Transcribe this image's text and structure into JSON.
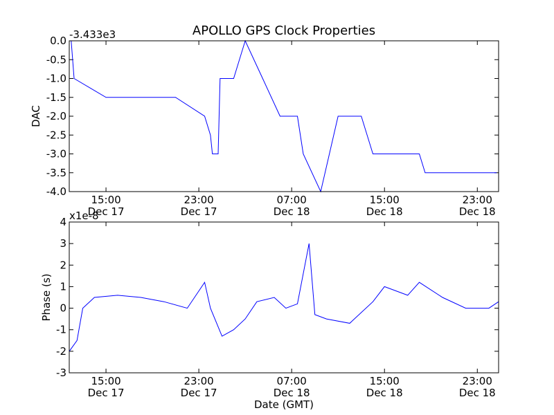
{
  "title": "APOLLO GPS Clock Properties",
  "line_color": "#0000ff",
  "chart_data": [
    {
      "type": "line",
      "offset_label": "-3.433e3",
      "ylabel": "DAC",
      "xlabel": "",
      "ylim": [
        -4.0,
        0.0
      ],
      "yticks": [
        {
          "value": 0.0,
          "label": "0.0"
        },
        {
          "value": -0.5,
          "label": "-0.5"
        },
        {
          "value": -1.0,
          "label": "-1.0"
        },
        {
          "value": -1.5,
          "label": "-1.5"
        },
        {
          "value": -2.0,
          "label": "-2.0"
        },
        {
          "value": -2.5,
          "label": "-2.5"
        },
        {
          "value": -3.0,
          "label": "-3.0"
        },
        {
          "value": -3.5,
          "label": "-3.5"
        },
        {
          "value": -4.0,
          "label": "-4.0"
        }
      ],
      "xlim": [
        "Dec 17 11:50",
        "Dec 19 00:50"
      ],
      "xticks": [
        {
          "time": "Dec 17 15:00",
          "hour": "15:00",
          "day": "Dec 17"
        },
        {
          "time": "Dec 17 23:00",
          "hour": "23:00",
          "day": "Dec 17"
        },
        {
          "time": "Dec 18 07:00",
          "hour": "07:00",
          "day": "Dec 18"
        },
        {
          "time": "Dec 18 15:00",
          "hour": "15:00",
          "day": "Dec 18"
        },
        {
          "time": "Dec 18 23:00",
          "hour": "23:00",
          "day": "Dec 18"
        }
      ],
      "series": [
        {
          "x": [
            "Dec 17 12:00",
            "Dec 17 12:15",
            "Dec 17 15:00",
            "Dec 17 18:00",
            "Dec 17 21:00",
            "Dec 17 23:30",
            "Dec 18 00:00",
            "Dec 18 00:10",
            "Dec 18 00:40",
            "Dec 18 00:50",
            "Dec 18 02:00",
            "Dec 18 03:00",
            "Dec 18 04:30",
            "Dec 18 06:00",
            "Dec 18 07:30",
            "Dec 18 08:00",
            "Dec 18 09:30",
            "Dec 18 11:00",
            "Dec 18 13:00",
            "Dec 18 14:00",
            "Dec 18 16:00",
            "Dec 18 18:00",
            "Dec 18 18:30",
            "Dec 18 20:00",
            "Dec 18 22:00",
            "Dec 18 23:30",
            "Dec 19 00:40"
          ],
          "y": [
            0.0,
            -1.0,
            -1.5,
            -1.5,
            -1.5,
            -2.0,
            -2.5,
            -3.0,
            -3.0,
            -1.0,
            -1.0,
            0.0,
            -1.0,
            -2.0,
            -2.0,
            -3.0,
            -4.0,
            -2.0,
            -2.0,
            -3.0,
            -3.0,
            -3.0,
            -3.5,
            -3.5,
            -3.5,
            -3.5,
            -3.5
          ]
        }
      ]
    },
    {
      "type": "line",
      "offset_label": "x1e-8",
      "ylabel": "Phase (s)",
      "xlabel": "Date (GMT)",
      "ylim": [
        -3,
        4
      ],
      "yticks": [
        {
          "value": 4,
          "label": "4"
        },
        {
          "value": 3,
          "label": "3"
        },
        {
          "value": 2,
          "label": "2"
        },
        {
          "value": 1,
          "label": "1"
        },
        {
          "value": 0,
          "label": "0"
        },
        {
          "value": -1,
          "label": "-1"
        },
        {
          "value": -2,
          "label": "-2"
        },
        {
          "value": -3,
          "label": "-3"
        }
      ],
      "xlim": [
        "Dec 17 11:50",
        "Dec 19 00:50"
      ],
      "xticks": [
        {
          "time": "Dec 17 15:00",
          "hour": "15:00",
          "day": "Dec 17"
        },
        {
          "time": "Dec 17 23:00",
          "hour": "23:00",
          "day": "Dec 17"
        },
        {
          "time": "Dec 18 07:00",
          "hour": "07:00",
          "day": "Dec 18"
        },
        {
          "time": "Dec 18 15:00",
          "hour": "15:00",
          "day": "Dec 18"
        },
        {
          "time": "Dec 18 23:00",
          "hour": "23:00",
          "day": "Dec 18"
        }
      ],
      "series": [
        {
          "x": [
            "Dec 17 11:50",
            "Dec 17 12:30",
            "Dec 17 13:00",
            "Dec 17 14:00",
            "Dec 17 16:00",
            "Dec 17 18:00",
            "Dec 17 20:00",
            "Dec 17 22:00",
            "Dec 17 23:30",
            "Dec 18 00:00",
            "Dec 18 01:00",
            "Dec 18 02:00",
            "Dec 18 03:00",
            "Dec 18 04:00",
            "Dec 18 05:30",
            "Dec 18 06:30",
            "Dec 18 07:30",
            "Dec 18 08:30",
            "Dec 18 09:00",
            "Dec 18 10:00",
            "Dec 18 12:00",
            "Dec 18 14:00",
            "Dec 18 15:00",
            "Dec 18 17:00",
            "Dec 18 18:00",
            "Dec 18 20:00",
            "Dec 18 22:00",
            "Dec 19 00:00",
            "Dec 19 00:50"
          ],
          "y": [
            -2.0,
            -1.5,
            0.0,
            0.5,
            0.6,
            0.5,
            0.3,
            0.0,
            1.2,
            0.0,
            -1.3,
            -1.0,
            -0.5,
            0.3,
            0.5,
            0.0,
            0.2,
            3.0,
            -0.3,
            -0.5,
            -0.7,
            0.3,
            1.0,
            0.6,
            1.2,
            0.5,
            0.0,
            0.0,
            0.3
          ]
        }
      ]
    }
  ]
}
